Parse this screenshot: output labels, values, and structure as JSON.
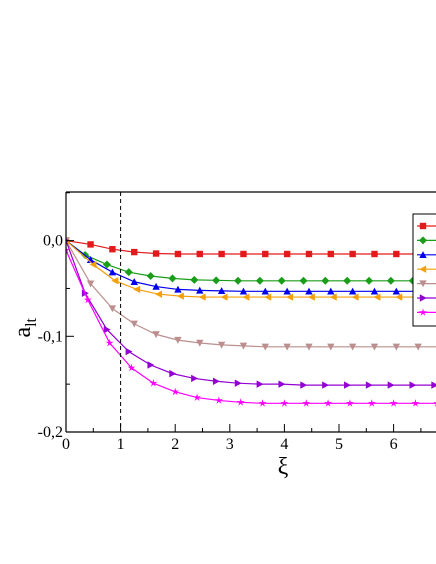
{
  "chart_data": {
    "type": "line",
    "xlabel": "ξ",
    "ylabel": "a",
    "ylabel_sub": "lt",
    "xlim": [
      0,
      6.85
    ],
    "ylim": [
      -0.2,
      0.05
    ],
    "xticks": [
      {
        "value": 0,
        "label": "0"
      },
      {
        "value": 1,
        "label": "1"
      },
      {
        "value": 2,
        "label": "2"
      },
      {
        "value": 3,
        "label": "3"
      },
      {
        "value": 4,
        "label": "4"
      },
      {
        "value": 5,
        "label": "5"
      },
      {
        "value": 6,
        "label": "6"
      }
    ],
    "yticks": [
      {
        "value": 0,
        "label": "0,0"
      },
      {
        "value": -0.1,
        "label": "-0,1"
      },
      {
        "value": -0.2,
        "label": "-0,2"
      }
    ],
    "vline_x": 1,
    "grid": false,
    "legend_position": "right (clipped)",
    "series": [
      {
        "color": "#e31a1c",
        "marker": "square",
        "x": [
          0,
          0.45,
          0.85,
          1.25,
          1.65,
          2.05,
          2.45,
          2.85,
          3.25,
          3.65,
          4.05,
          4.45,
          4.85,
          5.25,
          5.65,
          6.05,
          6.45,
          6.85
        ],
        "y": [
          0.0,
          -0.004,
          -0.009,
          -0.012,
          -0.0135,
          -0.014,
          -0.014,
          -0.014,
          -0.014,
          -0.014,
          -0.014,
          -0.014,
          -0.014,
          -0.014,
          -0.014,
          -0.014,
          -0.014,
          -0.014
        ]
      },
      {
        "color": "#1a9e1a",
        "marker": "diamond",
        "x": [
          0,
          0.35,
          0.75,
          1.15,
          1.55,
          1.95,
          2.35,
          2.75,
          3.15,
          3.55,
          3.95,
          4.35,
          4.75,
          5.15,
          5.55,
          5.95,
          6.35,
          6.75
        ],
        "y": [
          0.0,
          -0.015,
          -0.025,
          -0.033,
          -0.037,
          -0.0395,
          -0.041,
          -0.0415,
          -0.042,
          -0.042,
          -0.042,
          -0.042,
          -0.042,
          -0.042,
          -0.042,
          -0.042,
          -0.042,
          -0.042
        ]
      },
      {
        "color": "#0000ee",
        "marker": "triangle-up",
        "x": [
          0,
          0.45,
          0.85,
          1.25,
          1.65,
          2.05,
          2.45,
          2.85,
          3.25,
          3.65,
          4.05,
          4.45,
          4.85,
          5.25,
          5.65,
          6.05,
          6.45,
          6.85
        ],
        "y": [
          0.0,
          -0.02,
          -0.033,
          -0.043,
          -0.048,
          -0.051,
          -0.052,
          -0.0525,
          -0.053,
          -0.053,
          -0.053,
          -0.053,
          -0.053,
          -0.053,
          -0.053,
          -0.053,
          -0.053,
          -0.053
        ]
      },
      {
        "color": "#f4a00c",
        "marker": "triangle-left",
        "x": [
          0,
          0.5,
          0.9,
          1.3,
          1.7,
          2.1,
          2.5,
          2.9,
          3.3,
          3.7,
          4.1,
          4.5,
          4.9,
          5.3,
          5.7,
          6.1,
          6.5,
          6.85
        ],
        "y": [
          0.0,
          -0.025,
          -0.042,
          -0.051,
          -0.056,
          -0.058,
          -0.059,
          -0.059,
          -0.059,
          -0.059,
          -0.059,
          -0.059,
          -0.059,
          -0.059,
          -0.059,
          -0.059,
          -0.059,
          -0.059
        ]
      },
      {
        "color": "#bc8f8f",
        "marker": "triangle-down",
        "x": [
          0,
          0.45,
          0.85,
          1.25,
          1.65,
          2.05,
          2.45,
          2.85,
          3.25,
          3.65,
          4.05,
          4.45,
          4.85,
          5.25,
          5.65,
          6.05,
          6.45,
          6.85
        ],
        "y": [
          0.0,
          -0.045,
          -0.071,
          -0.087,
          -0.098,
          -0.104,
          -0.107,
          -0.109,
          -0.11,
          -0.111,
          -0.111,
          -0.111,
          -0.111,
          -0.111,
          -0.111,
          -0.111,
          -0.111,
          -0.111
        ]
      },
      {
        "color": "#9400d3",
        "marker": "triangle-right",
        "x": [
          0,
          0.35,
          0.75,
          1.15,
          1.55,
          1.95,
          2.35,
          2.75,
          3.15,
          3.55,
          3.95,
          4.35,
          4.75,
          5.15,
          5.55,
          5.95,
          6.35,
          6.75
        ],
        "y": [
          0.0,
          -0.055,
          -0.093,
          -0.116,
          -0.13,
          -0.139,
          -0.144,
          -0.147,
          -0.149,
          -0.15,
          -0.15,
          -0.151,
          -0.151,
          -0.151,
          -0.151,
          -0.151,
          -0.151,
          -0.151
        ]
      },
      {
        "color": "#ff00ff",
        "marker": "star",
        "x": [
          0,
          0.4,
          0.8,
          1.2,
          1.6,
          2.0,
          2.4,
          2.8,
          3.2,
          3.6,
          4.0,
          4.4,
          4.8,
          5.2,
          5.6,
          6.0,
          6.4,
          6.8
        ],
        "y": [
          -0.01,
          -0.062,
          -0.107,
          -0.133,
          -0.149,
          -0.158,
          -0.164,
          -0.167,
          -0.169,
          -0.17,
          -0.17,
          -0.17,
          -0.17,
          -0.17,
          -0.17,
          -0.17,
          -0.17,
          -0.17
        ]
      }
    ]
  }
}
